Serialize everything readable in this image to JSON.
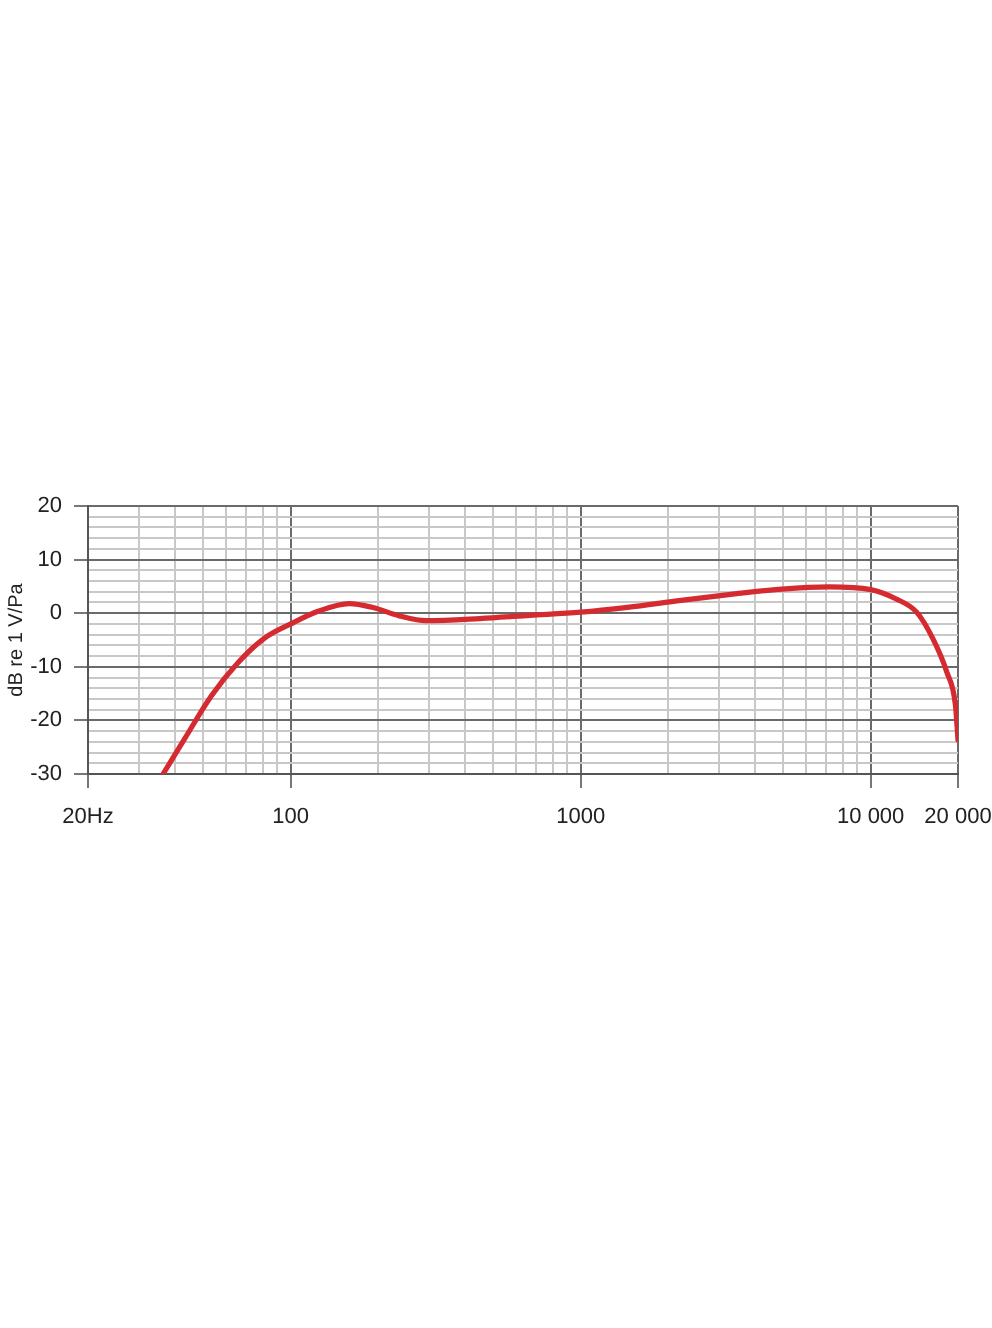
{
  "chart_data": {
    "type": "line",
    "ylabel": "dB re 1 V/Pa",
    "log": "x",
    "grid": true,
    "marker": "none",
    "line_style": "solid",
    "xlim": [
      20,
      20000
    ],
    "ylim": [
      -30,
      20
    ],
    "xticks": [
      {
        "value": 20,
        "label": "20Hz"
      },
      {
        "value": 30,
        "label": null
      },
      {
        "value": 40,
        "label": null
      },
      {
        "value": 50,
        "label": null
      },
      {
        "value": 60,
        "label": null
      },
      {
        "value": 70,
        "label": null
      },
      {
        "value": 80,
        "label": null
      },
      {
        "value": 90,
        "label": null
      },
      100,
      {
        "value": 200,
        "label": null
      },
      {
        "value": 300,
        "label": null
      },
      {
        "value": 400,
        "label": null
      },
      {
        "value": 500,
        "label": null
      },
      {
        "value": 600,
        "label": null
      },
      {
        "value": 700,
        "label": null
      },
      {
        "value": 800,
        "label": null
      },
      {
        "value": 900,
        "label": null
      },
      1000,
      {
        "value": 2000,
        "label": null
      },
      {
        "value": 3000,
        "label": null
      },
      {
        "value": 4000,
        "label": null
      },
      {
        "value": 5000,
        "label": null
      },
      {
        "value": 6000,
        "label": null
      },
      {
        "value": 7000,
        "label": null
      },
      {
        "value": 8000,
        "label": null
      },
      {
        "value": 9000,
        "label": null
      },
      {
        "value": 10000,
        "label": "10 000"
      },
      {
        "value": 20000,
        "label": "20 000"
      }
    ],
    "yticks": [
      -30,
      {
        "value": -28,
        "label": null
      },
      {
        "value": -26,
        "label": null
      },
      {
        "value": -24,
        "label": null
      },
      {
        "value": -22,
        "label": null
      },
      -20,
      {
        "value": -18,
        "label": null
      },
      {
        "value": -16,
        "label": null
      },
      {
        "value": -14,
        "label": null
      },
      {
        "value": -12,
        "label": null
      },
      -10,
      {
        "value": -8,
        "label": null
      },
      {
        "value": -6,
        "label": null
      },
      {
        "value": -4,
        "label": null
      },
      {
        "value": -2,
        "label": null
      },
      0,
      {
        "value": 2,
        "label": null
      },
      {
        "value": 4,
        "label": null
      },
      {
        "value": 6,
        "label": null
      },
      {
        "value": 8,
        "label": null
      },
      10,
      {
        "value": 12,
        "label": null
      },
      {
        "value": 14,
        "label": null
      },
      {
        "value": 16,
        "label": null
      },
      {
        "value": 18,
        "label": null
      },
      20
    ],
    "x": [
      36.3,
      43,
      53.3,
      65.9,
      81.5,
      100,
      125,
      159,
      191,
      237,
      293,
      449,
      670,
      1000,
      1450,
      2220,
      3400,
      4940,
      7180,
      10000,
      12200,
      14400,
      16400,
      18300,
      19600,
      20000
    ],
    "series": [
      {
        "color": "#d52b30",
        "values": [
          -30,
          -23.5,
          -15.4,
          -9.2,
          -4.6,
          -2,
          0.4,
          1.8,
          1.1,
          -0.5,
          -1.4,
          -1,
          -0.4,
          0.2,
          1.1,
          2.4,
          3.6,
          4.5,
          4.9,
          4.4,
          2.7,
          0.2,
          -4.8,
          -11,
          -17.2,
          -23.7
        ]
      }
    ]
  }
}
